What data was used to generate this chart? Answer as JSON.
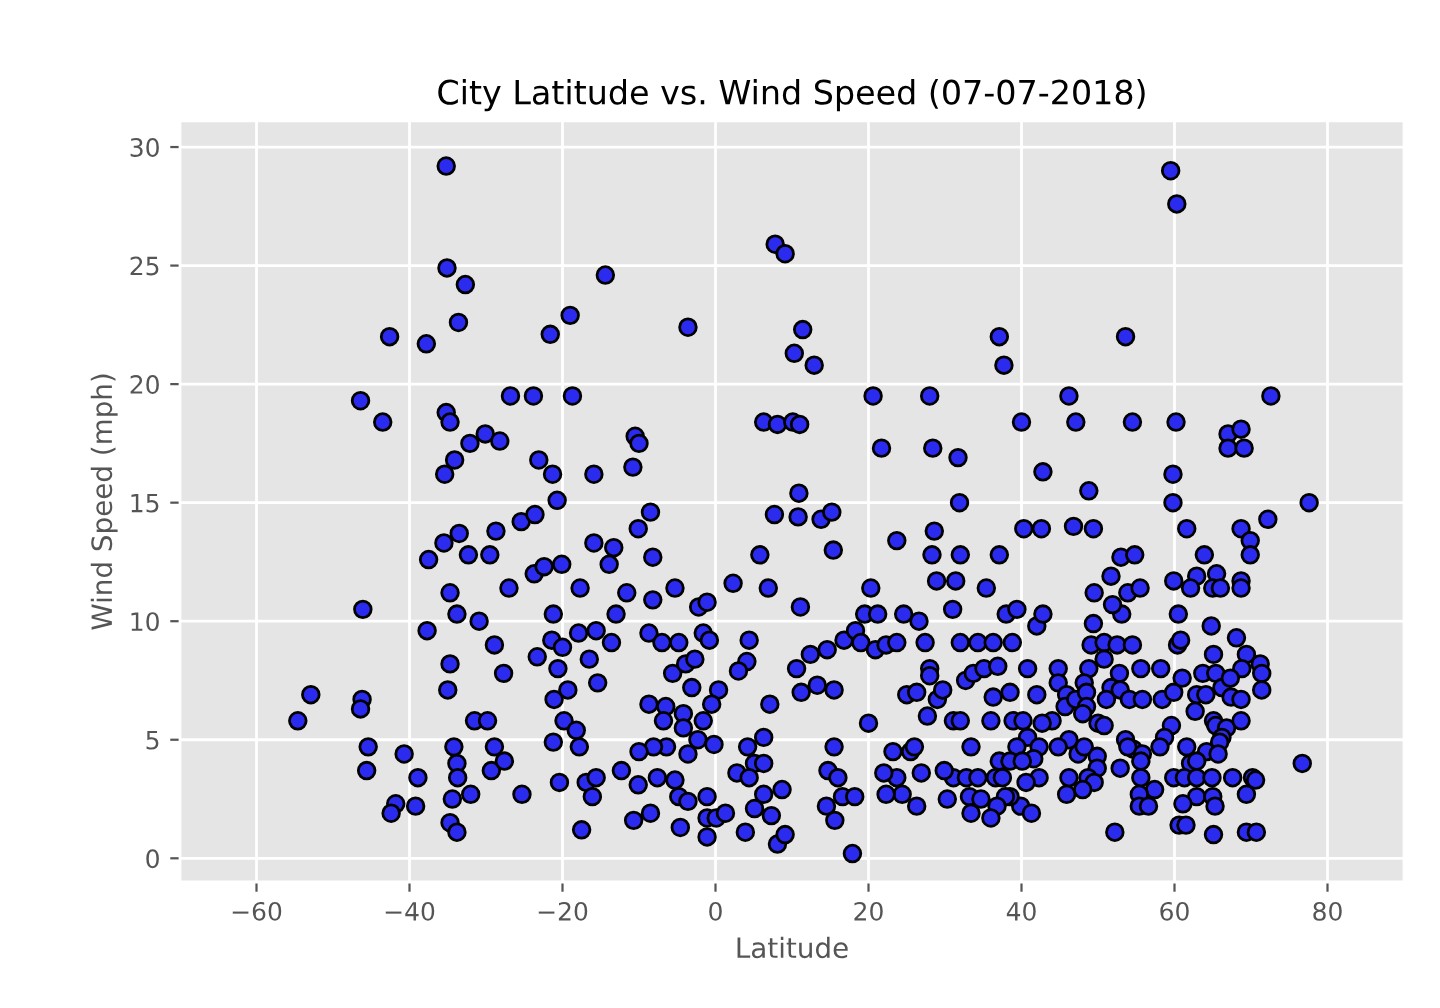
{
  "chart_data": {
    "type": "scatter",
    "title": "City Latitude vs. Wind Speed (07-07-2018)",
    "xlabel": "Latitude",
    "ylabel": "Wind Speed (mph)",
    "xlim": [
      -70,
      90
    ],
    "ylim": [
      -1,
      31.1
    ],
    "xticks": [
      {
        "value": -60,
        "label": "−60"
      },
      {
        "value": -40,
        "label": "−40"
      },
      {
        "value": -20,
        "label": "−20"
      },
      0,
      20,
      40,
      60,
      80
    ],
    "yticks": [
      0,
      5,
      10,
      15,
      20,
      25,
      30
    ],
    "grid": true,
    "marker": "circle",
    "series": [
      {
        "color": "#2b2bf0",
        "x": [
          -35.2,
          -35.1,
          -32.7,
          -14.4,
          -19.0,
          -42.6,
          -37.8,
          -33.6,
          -21.6,
          -3.6,
          7.8,
          9.1,
          11.4,
          10.3,
          12.9,
          -46.4,
          -43.5,
          -35.2,
          -34.7,
          -26.8,
          -23.8,
          -18.7,
          -30.1,
          -28.2,
          -32.1,
          -34.1,
          -35.4,
          -23.1,
          -21.3,
          -15.9,
          -10.8,
          -10.5,
          -10.0,
          6.3,
          8.1,
          10.1,
          11.0,
          10.9,
          -20.7,
          59.5,
          60.3,
          37.1,
          37.7,
          53.6,
          20.6,
          28.0,
          46.2,
          72.6,
          40.0,
          47.1,
          54.5,
          60.2,
          67.0,
          68.7,
          67.0,
          69.1,
          21.7,
          28.4,
          31.7,
          42.8,
          48.8,
          59.8,
          31.9,
          59.8,
          77.6,
          -46.1,
          -52.9,
          -54.6,
          -46.2,
          -46.4,
          -45.4,
          -45.6,
          -41.8,
          -42.4,
          -39.2,
          -40.7,
          -38.9,
          -37.5,
          -35.5,
          -33.5,
          -32.3,
          -34.7,
          -33.8,
          -37.7,
          -34.7,
          -35.0,
          -34.2,
          -33.8,
          -33.7,
          -34.4,
          -34.7,
          -33.8,
          -32.0,
          -31.5,
          -29.8,
          -30.9,
          -28.9,
          -27.7,
          -29.5,
          -28.7,
          -25.4,
          -23.6,
          -27.0,
          -23.7,
          -22.4,
          -20.1,
          -21.2,
          -21.4,
          -20.0,
          -23.3,
          -20.6,
          -19.3,
          -21.1,
          -19.8,
          -21.2,
          -18.2,
          -17.8,
          -20.4,
          -28.9,
          -29.3,
          -27.6,
          -25.3,
          -16.9,
          -16.1,
          -17.5,
          -15.6,
          -17.9,
          -16.5,
          -15.4,
          -13.6,
          -15.6,
          -17.7,
          -13.0,
          -11.6,
          -15.9,
          -13.3,
          -13.9,
          -10.1,
          -8.5,
          -8.2,
          -8.2,
          -5.3,
          -8.7,
          -7.0,
          -4.8,
          -8.7,
          -6.5,
          -6.8,
          -5.6,
          -3.9,
          -2.7,
          -1.6,
          -0.8,
          -2.2,
          -1.1,
          2.3,
          6.9,
          5.8,
          7.7,
          10.8,
          13.8,
          15.2,
          15.4,
          11.1,
          4.4,
          4.1,
          3.0,
          0.4,
          -0.5,
          -1.6,
          -3.1,
          -4.2,
          -4.2,
          -2.3,
          -0.2,
          -3.6,
          -6.4,
          -8.1,
          -10.0,
          -12.3,
          -10.1,
          -7.6,
          -5.3,
          -4.8,
          -3.6,
          -4.6,
          -1.1,
          -1.1,
          -1.1,
          0.1,
          1.3,
          -10.7,
          -8.5,
          4.2,
          5.1,
          6.3,
          2.8,
          4.4,
          6.3,
          7.1,
          8.7,
          6.3,
          5.1,
          7.3,
          3.9,
          8.1,
          9.1,
          11.2,
          10.6,
          12.4,
          14.6,
          13.3,
          15.5,
          16.8,
          15.5,
          14.7,
          16.0,
          14.5,
          15.6,
          16.6,
          17.9,
          20.3,
          23.7,
          28.6,
          28.3,
          32.0,
          37.1,
          40.3,
          42.6,
          46.8,
          49.4,
          61.6,
          68.7,
          72.2,
          69.9,
          69.9,
          63.9,
          53.0,
          54.8,
          28.9,
          31.4,
          35.4,
          31.0,
          38.0,
          39.4,
          42.0,
          42.8,
          24.6,
          26.6,
          19.5,
          21.2,
          18.3,
          19.0,
          20.9,
          22.3,
          23.7,
          27.4,
          32.0,
          34.3,
          36.3,
          38.8,
          28.0,
          28.0,
          32.7,
          33.7,
          35.1,
          36.9,
          40.8,
          25.0,
          26.3,
          29.0,
          29.7,
          27.7,
          31.1,
          32.0,
          36.0,
          38.9,
          40.2,
          36.3,
          38.5,
          42.0,
          44.8,
          44.8,
          48.8,
          48.2,
          45.9,
          45.7,
          47.1,
          48.5,
          48.5,
          44.0,
          42.7,
          48.0,
          50.0,
          50.8,
          49.5,
          49.4,
          49.1,
          50.8,
          52.5,
          54.5,
          50.8,
          52.8,
          51.7,
          52.9,
          51.1,
          54.1,
          55.8,
          51.7,
          53.1,
          51.9,
          53.9,
          55.5,
          55.6,
          58.2,
          58.4,
          59.9,
          59.6,
          59.9,
          60.5,
          62.9,
          62.1,
          65.5,
          65.0,
          66.0,
          68.7,
          68.7,
          60.4,
          60.8,
          64.8,
          68.1,
          65.1,
          69.4,
          68.8,
          71.2,
          71.4,
          71.4,
          61.0,
          63.7,
          65.4,
          62.9,
          64.1,
          66.2,
          67.3,
          67.4,
          68.7,
          62.7,
          65.1,
          65.4,
          66.8,
          68.7,
          66.2,
          65.9,
          64.2,
          65.7,
          58.7,
          58.1,
          61.6,
          62.1,
          62.9,
          59.9,
          61.3,
          62.9,
          64.9,
          67.6,
          70.2,
          70.6,
          62.9,
          61.1,
          65.0,
          65.3,
          69.4,
          60.6,
          61.5,
          65.1,
          69.4,
          70.7,
          76.7,
          53.6,
          54.6,
          55.8,
          53.9,
          52.9,
          55.6,
          55.6,
          57.4,
          55.4,
          55.4,
          56.6,
          52.2,
          46.2,
          47.4,
          48.2,
          49.9,
          49.9,
          48.7,
          49.5,
          48.0,
          46.2,
          45.9,
          44.8,
          42.3,
          40.6,
          39.9,
          41.3,
          40.8,
          39.4,
          42.3,
          41.6,
          37.1,
          38.5,
          40.1,
          36.6,
          37.5,
          38.5,
          37.9,
          36.8,
          36.0,
          33.4,
          31.1,
          32.8,
          34.3,
          33.2,
          34.7,
          33.4,
          30.3,
          29.9,
          26.9,
          26.3,
          24.4,
          22.3,
          23.7,
          25.5,
          26.0,
          23.2,
          22.0,
          20.0,
          18.2
        ],
        "values": [
          29.2,
          24.9,
          24.2,
          24.6,
          22.9,
          22.0,
          21.7,
          22.6,
          22.1,
          22.4,
          25.9,
          25.5,
          22.3,
          21.3,
          20.8,
          19.3,
          18.4,
          18.8,
          18.4,
          19.5,
          19.5,
          19.5,
          17.9,
          17.6,
          17.5,
          16.8,
          16.2,
          16.8,
          16.2,
          16.2,
          16.5,
          17.8,
          17.5,
          18.4,
          18.3,
          18.4,
          18.3,
          15.4,
          15.1,
          29.0,
          27.6,
          22.0,
          20.8,
          22.0,
          19.5,
          19.5,
          19.5,
          19.5,
          18.4,
          18.4,
          18.4,
          18.4,
          17.9,
          18.1,
          17.3,
          17.3,
          17.3,
          17.3,
          16.9,
          16.3,
          15.5,
          16.2,
          15.0,
          15.0,
          15.0,
          10.5,
          6.9,
          5.8,
          6.7,
          6.3,
          4.7,
          3.7,
          2.3,
          1.9,
          2.2,
          4.4,
          3.4,
          12.6,
          13.3,
          13.7,
          12.8,
          11.2,
          10.3,
          9.6,
          8.2,
          7.1,
          4.7,
          4.0,
          3.4,
          2.5,
          1.5,
          1.1,
          2.7,
          5.8,
          5.8,
          10.0,
          9.0,
          7.8,
          12.8,
          13.8,
          14.2,
          14.5,
          11.4,
          12.0,
          12.3,
          12.4,
          10.3,
          9.2,
          8.9,
          8.5,
          8.0,
          7.1,
          6.7,
          5.8,
          4.9,
          5.4,
          4.7,
          3.2,
          4.7,
          3.7,
          4.1,
          2.7,
          3.2,
          2.6,
          1.2,
          3.4,
          9.5,
          8.4,
          7.4,
          9.1,
          9.6,
          11.4,
          10.3,
          11.2,
          13.3,
          13.1,
          12.4,
          13.9,
          14.6,
          12.7,
          10.9,
          11.4,
          9.5,
          9.1,
          9.1,
          6.5,
          6.4,
          5.8,
          7.8,
          8.2,
          8.4,
          9.5,
          9.2,
          10.6,
          10.8,
          11.6,
          11.4,
          12.8,
          14.5,
          14.4,
          14.3,
          14.6,
          13.0,
          10.6,
          9.2,
          8.3,
          7.9,
          7.1,
          6.5,
          5.8,
          7.2,
          6.1,
          5.5,
          5.0,
          4.8,
          4.4,
          4.7,
          4.7,
          4.5,
          3.7,
          3.1,
          3.4,
          3.3,
          2.6,
          2.4,
          1.3,
          2.6,
          1.7,
          0.9,
          1.7,
          1.9,
          1.6,
          1.9,
          4.7,
          4.0,
          4.0,
          3.6,
          3.4,
          5.1,
          6.5,
          2.9,
          2.7,
          2.1,
          1.8,
          1.1,
          0.6,
          1.0,
          7.0,
          8.0,
          8.6,
          8.8,
          7.3,
          7.1,
          9.2,
          4.7,
          3.7,
          3.4,
          2.2,
          1.6,
          2.6,
          0.2,
          11.4,
          13.4,
          13.8,
          12.8,
          12.8,
          12.8,
          13.9,
          13.9,
          14.0,
          13.9,
          13.9,
          13.9,
          14.3,
          13.4,
          12.8,
          12.8,
          12.7,
          12.8,
          11.7,
          11.7,
          11.4,
          10.5,
          10.3,
          10.5,
          9.8,
          10.3,
          10.3,
          10.0,
          10.3,
          10.3,
          9.6,
          9.1,
          8.8,
          9.0,
          9.1,
          9.1,
          9.1,
          9.1,
          9.1,
          9.1,
          8.0,
          7.7,
          7.5,
          7.8,
          8.0,
          8.1,
          8.0,
          6.9,
          7.0,
          6.7,
          7.1,
          6.0,
          5.8,
          5.8,
          5.8,
          5.8,
          5.8,
          6.8,
          7.0,
          6.9,
          8.0,
          7.4,
          8.0,
          7.4,
          6.9,
          6.4,
          6.7,
          7.0,
          6.4,
          5.8,
          5.7,
          6.1,
          5.7,
          5.6,
          11.2,
          9.9,
          9.0,
          9.1,
          9.0,
          9.0,
          8.4,
          7.8,
          7.2,
          7.1,
          6.7,
          6.7,
          6.7,
          11.9,
          10.3,
          10.7,
          11.2,
          11.4,
          8.0,
          8.0,
          6.7,
          7.0,
          5.6,
          11.7,
          10.3,
          11.9,
          11.4,
          12.0,
          11.4,
          11.4,
          11.7,
          11.4,
          9.0,
          9.2,
          9.8,
          9.3,
          8.6,
          8.6,
          8.0,
          8.2,
          7.8,
          7.1,
          7.6,
          7.8,
          7.8,
          6.9,
          6.9,
          7.2,
          7.6,
          6.8,
          6.7,
          6.2,
          5.8,
          5.6,
          5.5,
          5.8,
          5.1,
          4.9,
          4.5,
          4.4,
          5.1,
          4.7,
          4.7,
          4.0,
          4.1,
          3.4,
          3.4,
          3.4,
          3.4,
          3.4,
          3.4,
          3.3,
          2.6,
          2.3,
          2.6,
          2.2,
          2.7,
          1.4,
          1.4,
          1.0,
          1.1,
          1.1,
          4.0,
          5.0,
          4.6,
          4.4,
          4.7,
          3.8,
          4.1,
          3.4,
          2.9,
          2.7,
          2.2,
          2.2,
          1.1,
          5.0,
          4.4,
          4.7,
          4.3,
          3.8,
          3.4,
          3.2,
          2.9,
          3.4,
          2.7,
          4.7,
          3.4,
          3.2,
          2.2,
          1.9,
          5.1,
          4.7,
          4.7,
          4.2,
          4.1,
          4.1,
          4.1,
          3.4,
          3.4,
          2.6,
          2.6,
          2.2,
          1.7,
          4.7,
          3.4,
          3.4,
          3.4,
          2.6,
          2.5,
          1.9,
          2.5,
          3.7,
          3.6,
          2.2,
          2.7,
          2.7,
          3.4,
          4.5,
          4.7,
          4.5,
          3.6,
          5.7,
          2.6
        ]
      }
    ]
  }
}
